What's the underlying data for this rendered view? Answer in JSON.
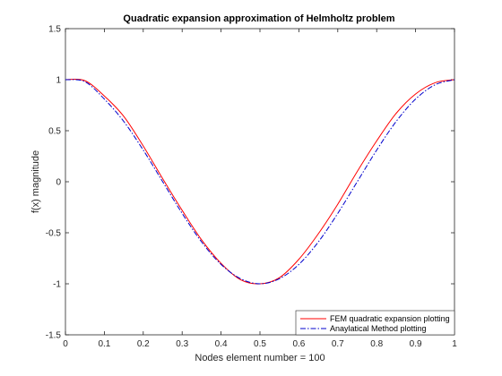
{
  "chart_data": {
    "type": "line",
    "title": "Quadratic expansion approximation of Helmholtz problem",
    "xlabel": "Nodes element number = 100",
    "ylabel": "f(x) magnitude",
    "xlim": [
      0,
      1
    ],
    "ylim": [
      -1.5,
      1.5
    ],
    "x_ticks": [
      0,
      0.1,
      0.2,
      0.3,
      0.4,
      0.5,
      0.6,
      0.7,
      0.8,
      0.9,
      1
    ],
    "x_tick_labels": [
      "0",
      "0.1",
      "0.2",
      "0.3",
      "0.4",
      "0.5",
      "0.6",
      "0.7",
      "0.8",
      "0.9",
      "1"
    ],
    "y_ticks": [
      -1.5,
      -1,
      -0.5,
      0,
      0.5,
      1,
      1.5
    ],
    "y_tick_labels": [
      "-1.5",
      "-1",
      "-0.5",
      "0",
      "0.5",
      "1",
      "1.5"
    ],
    "grid": false,
    "legend_position": "bottom-right",
    "x": [
      0,
      0.05,
      0.1,
      0.15,
      0.2,
      0.25,
      0.3,
      0.35,
      0.4,
      0.45,
      0.5,
      0.55,
      0.6,
      0.65,
      0.7,
      0.75,
      0.8,
      0.85,
      0.9,
      0.95,
      1
    ],
    "series": [
      {
        "name": "FEM quadratic expansion plotting",
        "color": "#ff0000",
        "style": "solid",
        "values": [
          1,
          0.99,
          0.84,
          0.64,
          0.35,
          0.03,
          -0.28,
          -0.57,
          -0.8,
          -0.96,
          -1,
          -0.94,
          -0.76,
          -0.51,
          -0.22,
          0.1,
          0.4,
          0.67,
          0.86,
          0.97,
          1
        ]
      },
      {
        "name": "Anaylatical Method plotting",
        "color": "#0000cc",
        "style": "dashdot",
        "values": [
          1,
          0.98,
          0.81,
          0.59,
          0.31,
          0,
          -0.31,
          -0.59,
          -0.81,
          -0.95,
          -1,
          -0.95,
          -0.81,
          -0.59,
          -0.31,
          0,
          0.31,
          0.59,
          0.81,
          0.95,
          1
        ]
      }
    ]
  }
}
